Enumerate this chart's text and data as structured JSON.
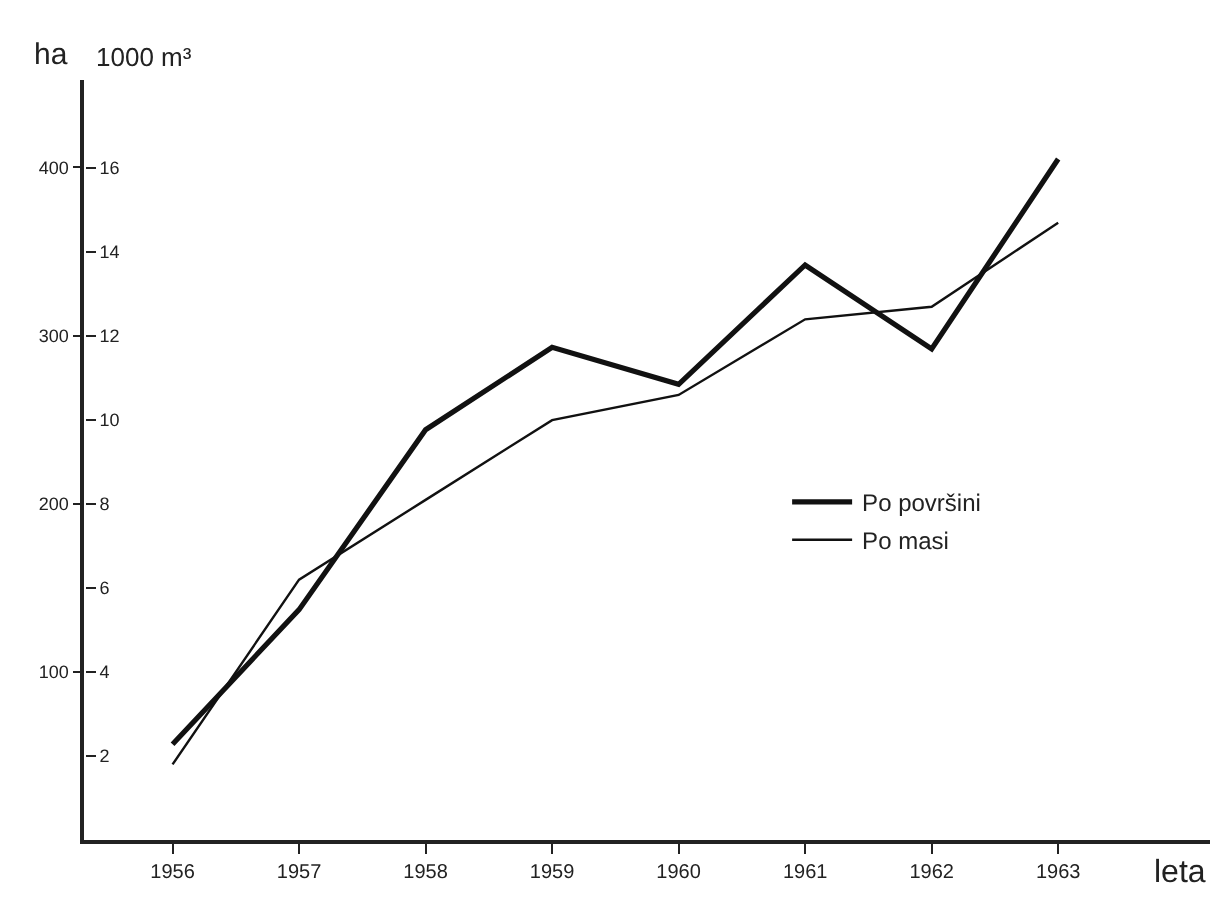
{
  "chart_data": {
    "type": "line",
    "xlabel": "leta",
    "ylabel": "ha",
    "y2label": "1000 m³",
    "x": [
      1956,
      1957,
      1958,
      1959,
      1960,
      1961,
      1962,
      1963
    ],
    "series": [
      {
        "name": "Po površini",
        "color": "#111111",
        "values": [
          57,
          137,
          244,
          293,
          271,
          342,
          292,
          405
        ]
      },
      {
        "name": "Po masi",
        "color": "#111111",
        "axis": "y2",
        "values": [
          1.8,
          6.2,
          8.1,
          10.0,
          10.6,
          12.4,
          12.7,
          14.7
        ]
      }
    ],
    "xlim": [
      1955.3,
      1964.2
    ],
    "xticks": [
      1956,
      1957,
      1958,
      1959,
      1960,
      1961,
      1962,
      1963
    ],
    "ylim": [
      0,
      452
    ],
    "yticks": [
      100,
      200,
      300,
      400
    ],
    "y2lim": [
      0,
      18.1
    ],
    "y2ticks": [
      2,
      4,
      6,
      8,
      10,
      12,
      14,
      16
    ],
    "grid": false,
    "legend": "right",
    "marker": "none",
    "line_style": "solid"
  }
}
